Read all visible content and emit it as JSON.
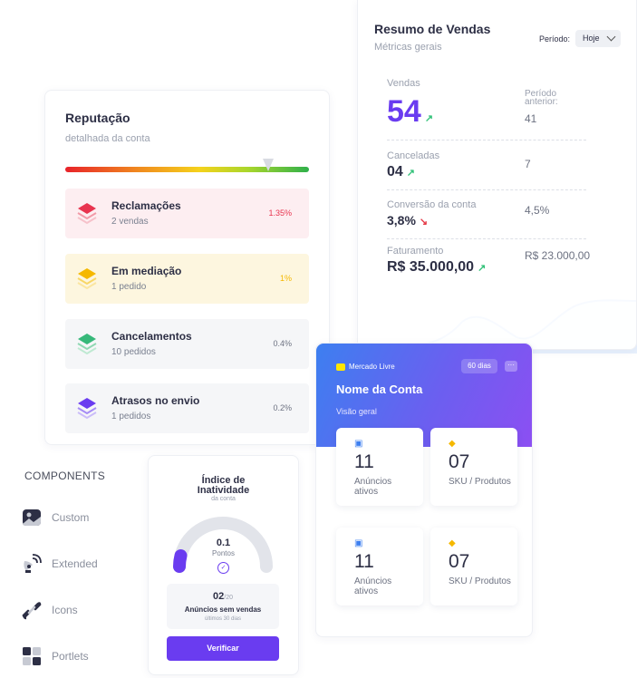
{
  "reputation": {
    "title": "Reputação",
    "subtitle": "detalhada da conta",
    "items": [
      {
        "label": "Reclamações",
        "count": "2 vendas",
        "percent": "1.35%",
        "color": "#e8344f",
        "bg": "#fdeef1"
      },
      {
        "label": "Em mediação",
        "count": "1 pedido",
        "percent": "1%",
        "color": "#f5b800",
        "bg": "#fdf6df"
      },
      {
        "label": "Cancelamentos",
        "count": "10 pedidos",
        "percent": "0.4%",
        "color": "#37b87a",
        "bg": "#f5f6f8"
      },
      {
        "label": "Atrasos no envio",
        "count": "1 pedidos",
        "percent": "0.2%",
        "color": "#6a3cf0",
        "bg": "#f5f6f8"
      }
    ]
  },
  "sales": {
    "title": "Resumo de Vendas",
    "subtitle": "Métricas gerais",
    "period_label": "Período:",
    "period_value": "Hoje",
    "metrics": {
      "vendas_label": "Vendas",
      "vendas_value": "54",
      "prev_label": "Período anterior:",
      "prev_value": "41",
      "canceladas_label": "Canceladas",
      "canceladas_value": "04",
      "canceladas_prev": "7",
      "conversao_label": "Conversão da conta",
      "conversao_value": "3,8%",
      "conversao_prev": "4,5%",
      "faturamento_label": "Faturamento",
      "faturamento_value": "R$ 35.000,00",
      "faturamento_prev": "R$ 23.000,00"
    },
    "trend_up_icon": "arrow-up-right-icon",
    "trend_down_icon": "arrow-down-right-icon"
  },
  "account": {
    "brand": "Mercado Livre",
    "badge": "60 dias",
    "more": "···",
    "name": "Nome da Conta",
    "overview": "Visão geral",
    "tiles": [
      {
        "value": "11",
        "label": "Anúncios ativos",
        "icon": "ad-icon"
      },
      {
        "value": "07",
        "label": "SKU / Produtos",
        "icon": "box-icon"
      },
      {
        "value": "11",
        "label": "Anúncios ativos",
        "icon": "ad-icon"
      },
      {
        "value": "07",
        "label": "SKU / Produtos",
        "icon": "box-icon"
      }
    ]
  },
  "components": {
    "heading": "COMPONENTS",
    "items": [
      {
        "label": "Custom",
        "icon": "image-icon"
      },
      {
        "label": "Extended",
        "icon": "satellite-icon"
      },
      {
        "label": "Icons",
        "icon": "link-icon"
      },
      {
        "label": "Portlets",
        "icon": "grid-icon"
      }
    ]
  },
  "inactivity": {
    "title": "Índice de Inatividade",
    "subtitle": "da conta",
    "value": "0.1",
    "unit": "Pontos",
    "listings_value": "02",
    "listings_total": "/20",
    "listings_label": "Anúncios sem vendas",
    "listings_period": "últimos 30 dias",
    "button": "Verificar",
    "level_fraction": 0.08
  },
  "colors": {
    "accent": "#6a3cf0",
    "up": "#34c27a",
    "down": "#e53845",
    "line": "#3d8af0"
  }
}
